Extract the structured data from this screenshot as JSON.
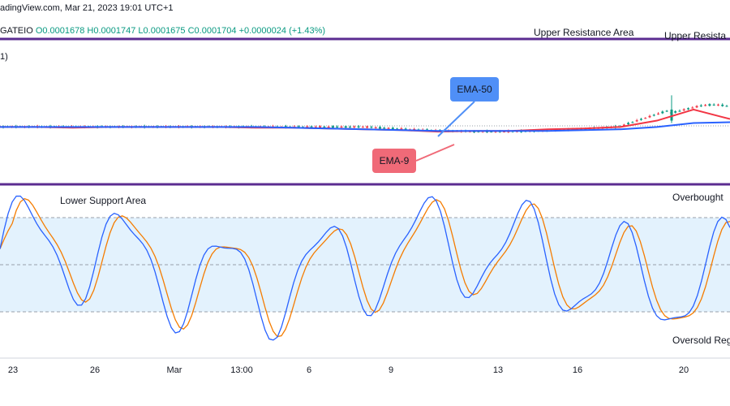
{
  "header": {
    "source_line": "adingView.com, Mar 21, 2023 19:01 UTC+1",
    "symbol": "GATEIO",
    "ohlc": "O0.0001678 H0.0001747 L0.0001675 C0.0001704 +0.0000024 (+1.43%)",
    "fragment": "1)"
  },
  "annotations": {
    "upper_resistance": "Upper Resistance Area",
    "upper_resistance_cut": "Upper Resista",
    "lower_support": "Lower Support Area",
    "overbought": "Overbought",
    "oversold": "Oversold Reg",
    "ema50": "EMA-50",
    "ema9": "EMA-9"
  },
  "colors": {
    "up": "#089981",
    "down": "#f23645",
    "ema_fast": "#f23645",
    "ema_slow": "#2962ff",
    "stoch_k": "#2962ff",
    "stoch_d": "#f57c00",
    "divider": "#5b2c91",
    "band": "#e3f2fd",
    "ema50_box": "#4f8ff7",
    "ema9_box": "#f06a78"
  },
  "chart_data": [
    {
      "type": "candlestick",
      "panel": "price",
      "x_tick_labels": [
        "23",
        "26",
        "Mar",
        "13:00",
        "6",
        "9",
        "13",
        "16",
        "20"
      ],
      "baseline_level": 0.5,
      "candles_summary": "low-volatility range, spike to upper resistance near Mar 20",
      "series": [
        {
          "name": "EMA-9",
          "values": [
            0.5,
            0.5,
            0.49,
            0.5,
            0.5,
            0.5,
            0.5,
            0.49,
            0.49,
            0.48,
            0.47,
            0.46,
            0.44,
            0.45,
            0.45,
            0.47,
            0.48,
            0.5,
            0.58,
            0.72,
            0.6
          ]
        },
        {
          "name": "EMA-50",
          "values": [
            0.5,
            0.5,
            0.5,
            0.5,
            0.5,
            0.5,
            0.5,
            0.5,
            0.49,
            0.48,
            0.47,
            0.46,
            0.45,
            0.45,
            0.45,
            0.45,
            0.46,
            0.47,
            0.5,
            0.55,
            0.56
          ]
        }
      ]
    },
    {
      "type": "line",
      "panel": "stochastic",
      "levels": [
        20,
        50,
        80
      ],
      "ylim": [
        0,
        100
      ]
    }
  ]
}
